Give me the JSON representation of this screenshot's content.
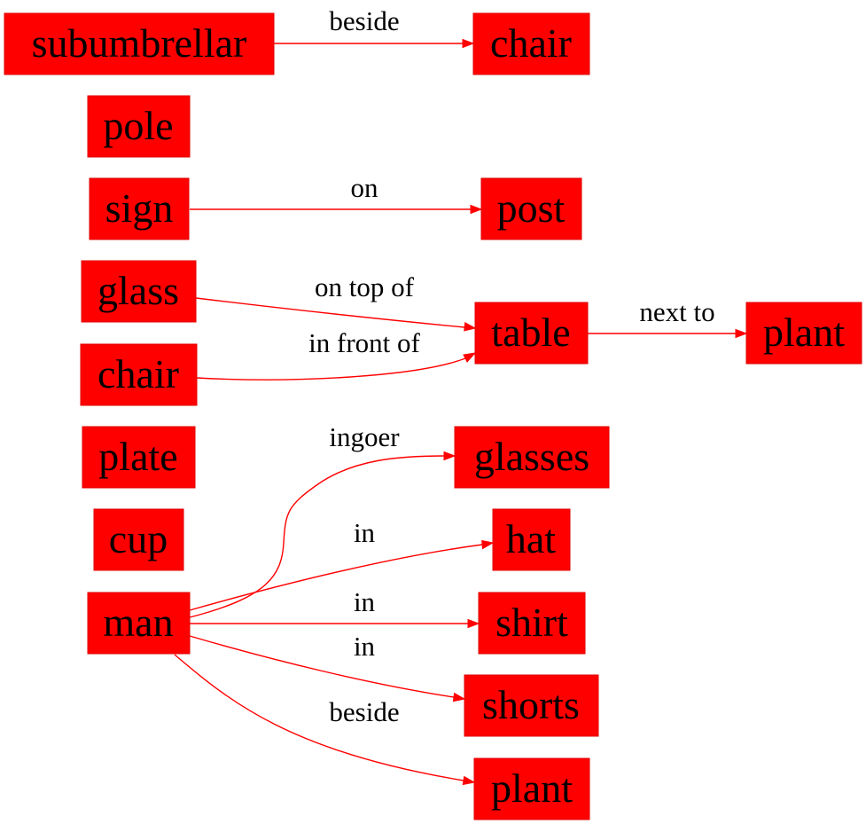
{
  "colors": {
    "node_fill": "#ff0000",
    "edge": "#ff0000",
    "text": "#000000",
    "background": "#ffffff"
  },
  "nodes": {
    "subumbrellar": "subumbrellar",
    "chair_1": "chair",
    "pole": "pole",
    "sign": "sign",
    "post": "post",
    "glass": "glass",
    "table": "table",
    "plant_1": "plant",
    "chair_2": "chair",
    "plate": "plate",
    "glasses": "glasses",
    "cup": "cup",
    "hat": "hat",
    "man": "man",
    "shirt": "shirt",
    "shorts": "shorts",
    "plant_2": "plant"
  },
  "edges": [
    {
      "from": "subumbrellar",
      "to": "chair",
      "label": "beside"
    },
    {
      "from": "sign",
      "to": "post",
      "label": "on"
    },
    {
      "from": "glass",
      "to": "table",
      "label": "on top of"
    },
    {
      "from": "chair",
      "to": "table",
      "label": "in front of"
    },
    {
      "from": "table",
      "to": "plant",
      "label": "next to"
    },
    {
      "from": "man",
      "to": "glasses",
      "label": "ingoer"
    },
    {
      "from": "man",
      "to": "hat",
      "label": "in"
    },
    {
      "from": "man",
      "to": "shirt",
      "label": "in"
    },
    {
      "from": "man",
      "to": "shorts",
      "label": "in"
    },
    {
      "from": "man",
      "to": "plant",
      "label": "beside"
    }
  ]
}
